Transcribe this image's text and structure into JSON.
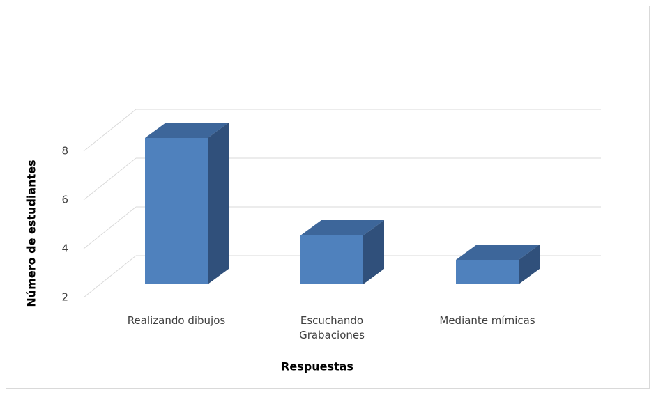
{
  "chart_data": {
    "type": "bar3d",
    "categories": [
      "Realizando dibujos",
      "Escuchando Grabaciones",
      "Mediante mímicas"
    ],
    "values": [
      8,
      4,
      3
    ],
    "color": "#4f81bd",
    "ylim": [
      2,
      8
    ],
    "yticks": [
      2,
      4,
      6,
      8
    ],
    "grid": true,
    "xlabel": "Respuestas",
    "ylabel": "Número de estudiantes"
  }
}
